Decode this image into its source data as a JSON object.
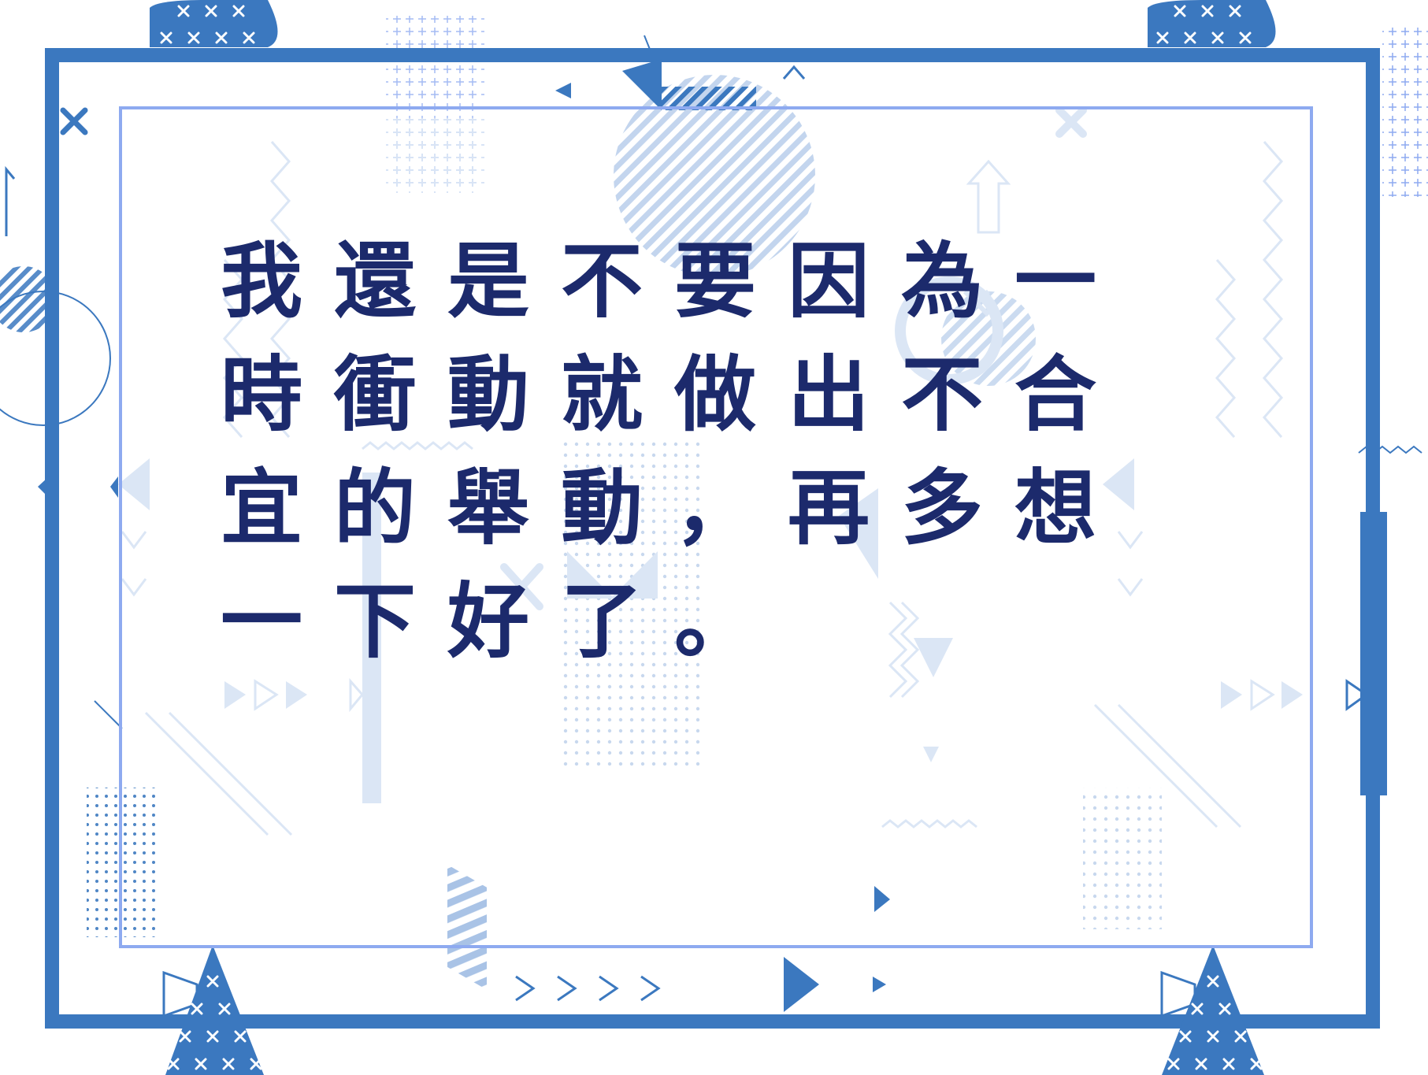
{
  "quote": {
    "text": "我還是不要因為一時衝動就做出不合宜的舉動，再多想一下好了。"
  },
  "colors": {
    "frame_outer": "#3b78bf",
    "frame_inner": "#8eaaf0",
    "accent_light": "#dbe6f5",
    "accent_mid": "#a9c3e6",
    "text": "#1c2a6c"
  },
  "decorations": {
    "icons": [
      "cross-marks",
      "play-triangles",
      "chevrons",
      "zigzag-lines",
      "striped-circles",
      "dotted-patterns",
      "up-arrow-outline"
    ]
  }
}
